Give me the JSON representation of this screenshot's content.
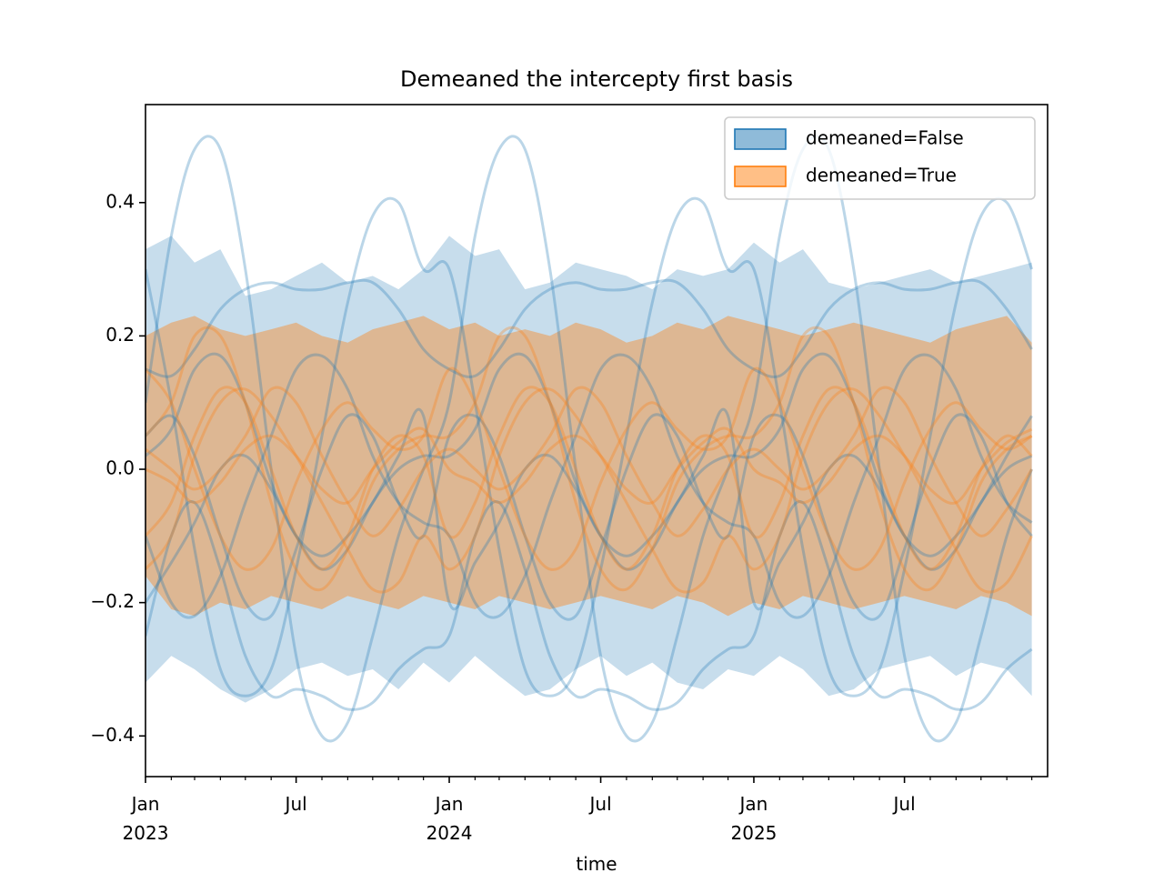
{
  "chart_data": {
    "type": "line",
    "title": "Demeaned the intercepty first basis",
    "xlabel": "time",
    "x": [
      "2023-01-01",
      "2023-02-01",
      "2023-03-01",
      "2023-04-01",
      "2023-05-01",
      "2023-06-01",
      "2023-07-01",
      "2023-08-01",
      "2023-09-01",
      "2023-10-01",
      "2023-11-01",
      "2023-12-01",
      "2024-01-01",
      "2024-02-01",
      "2024-03-01",
      "2024-04-01",
      "2024-05-01",
      "2024-06-01",
      "2024-07-01",
      "2024-08-01",
      "2024-09-01",
      "2024-10-01",
      "2024-11-01",
      "2024-12-01",
      "2025-01-01",
      "2025-02-01",
      "2025-03-01",
      "2025-04-01",
      "2025-05-01",
      "2025-06-01",
      "2025-07-01",
      "2025-08-01",
      "2025-09-01",
      "2025-10-01",
      "2025-11-01",
      "2025-12-01"
    ],
    "xlim": [
      "2023-01-01",
      "2025-12-20"
    ],
    "ylim": [
      -0.461,
      0.547
    ],
    "yticks": [
      {
        "value": -0.4,
        "label": "−0.4"
      },
      {
        "value": -0.2,
        "label": "−0.2"
      },
      {
        "value": 0,
        "label": "0.0"
      },
      0.2,
      0.4
    ],
    "xticks": [
      {
        "value": "2023-01-01",
        "label": "Jan\n2023"
      },
      {
        "value": "2023-07-01",
        "label": "Jul"
      },
      {
        "value": "2024-01-01",
        "label": "Jan\n2024"
      },
      {
        "value": "2024-07-01",
        "label": "Jul"
      },
      {
        "value": "2025-01-01",
        "label": "Jan\n2025"
      },
      {
        "value": "2025-07-01",
        "label": "Jul"
      }
    ],
    "xminorticks": [
      "2023-02-01",
      "2023-03-01",
      "2023-04-01",
      "2023-05-01",
      "2023-06-01",
      "2023-08-01",
      "2023-09-01",
      "2023-10-01",
      "2023-11-01",
      "2023-12-01",
      "2024-02-01",
      "2024-03-01",
      "2024-04-01",
      "2024-05-01",
      "2024-06-01",
      "2024-08-01",
      "2024-09-01",
      "2024-10-01",
      "2024-11-01",
      "2024-12-01",
      "2025-02-01",
      "2025-03-01",
      "2025-04-01",
      "2025-05-01",
      "2025-06-01",
      "2025-08-01",
      "2025-09-01",
      "2025-10-01",
      "2025-11-01",
      "2025-12-01"
    ],
    "legend": "upper right",
    "bands": [
      {
        "name": "demeaned=False",
        "color": "#1f77b4",
        "upper": [
          0.33,
          0.35,
          0.31,
          0.33,
          0.26,
          0.27,
          0.29,
          0.31,
          0.28,
          0.29,
          0.27,
          0.3,
          0.35,
          0.32,
          0.33,
          0.27,
          0.28,
          0.31,
          0.3,
          0.29,
          0.27,
          0.3,
          0.29,
          0.3,
          0.34,
          0.31,
          0.33,
          0.28,
          0.27,
          0.28,
          0.29,
          0.3,
          0.28,
          0.29,
          0.3,
          0.31
        ],
        "lower": [
          -0.32,
          -0.28,
          -0.3,
          -0.33,
          -0.35,
          -0.33,
          -0.3,
          -0.29,
          -0.31,
          -0.3,
          -0.33,
          -0.29,
          -0.32,
          -0.28,
          -0.31,
          -0.34,
          -0.33,
          -0.3,
          -0.28,
          -0.31,
          -0.29,
          -0.32,
          -0.33,
          -0.3,
          -0.31,
          -0.28,
          -0.3,
          -0.34,
          -0.33,
          -0.3,
          -0.29,
          -0.28,
          -0.31,
          -0.29,
          -0.3,
          -0.34
        ]
      },
      {
        "name": "demeaned=True",
        "color": "#ff7f0e",
        "upper": [
          0.2,
          0.22,
          0.23,
          0.21,
          0.2,
          0.21,
          0.22,
          0.2,
          0.19,
          0.21,
          0.22,
          0.23,
          0.21,
          0.22,
          0.2,
          0.21,
          0.2,
          0.22,
          0.21,
          0.19,
          0.2,
          0.22,
          0.21,
          0.23,
          0.22,
          0.21,
          0.2,
          0.21,
          0.22,
          0.21,
          0.2,
          0.19,
          0.21,
          0.22,
          0.23,
          0.19
        ],
        "lower": [
          -0.16,
          -0.21,
          -0.22,
          -0.2,
          -0.21,
          -0.19,
          -0.2,
          -0.21,
          -0.19,
          -0.2,
          -0.21,
          -0.19,
          -0.2,
          -0.21,
          -0.19,
          -0.2,
          -0.21,
          -0.2,
          -0.19,
          -0.2,
          -0.21,
          -0.19,
          -0.2,
          -0.22,
          -0.2,
          -0.21,
          -0.19,
          -0.2,
          -0.21,
          -0.2,
          -0.19,
          -0.2,
          -0.21,
          -0.19,
          -0.2,
          -0.22
        ]
      }
    ],
    "series": [
      {
        "color": "#1f77b4",
        "values": [
          0.1,
          0.35,
          0.48,
          0.48,
          0.3,
          0.0,
          -0.28,
          -0.4,
          -0.38,
          -0.25,
          -0.1,
          0.0,
          0.1,
          0.35,
          0.48,
          0.48,
          0.3,
          0.0,
          -0.28,
          -0.4,
          -0.38,
          -0.25,
          -0.1,
          0.0,
          0.1,
          0.35,
          0.48,
          0.48,
          0.3,
          0.0,
          -0.28,
          -0.4,
          -0.38,
          -0.25,
          -0.1,
          0.0
        ]
      },
      {
        "color": "#1f77b4",
        "values": [
          0.3,
          0.1,
          -0.12,
          -0.3,
          -0.34,
          -0.3,
          -0.15,
          0.05,
          0.25,
          0.38,
          0.4,
          0.3,
          0.3,
          0.1,
          -0.12,
          -0.3,
          -0.34,
          -0.3,
          -0.15,
          0.05,
          0.25,
          0.38,
          0.4,
          0.3,
          0.3,
          0.1,
          -0.12,
          -0.3,
          -0.34,
          -0.3,
          -0.15,
          0.05,
          0.25,
          0.38,
          0.4,
          0.3
        ]
      },
      {
        "color": "#1f77b4",
        "values": [
          0.15,
          0.14,
          0.18,
          0.24,
          0.27,
          0.28,
          0.27,
          0.27,
          0.28,
          0.28,
          0.24,
          0.18,
          0.15,
          0.14,
          0.18,
          0.24,
          0.27,
          0.28,
          0.27,
          0.27,
          0.28,
          0.28,
          0.24,
          0.18,
          0.15,
          0.14,
          0.18,
          0.24,
          0.27,
          0.28,
          0.27,
          0.27,
          0.28,
          0.28,
          0.24,
          0.18
        ]
      },
      {
        "color": "#1f77b4",
        "values": [
          -0.25,
          -0.1,
          -0.05,
          -0.15,
          -0.28,
          -0.34,
          -0.33,
          -0.34,
          -0.36,
          -0.35,
          -0.3,
          -0.27,
          -0.25,
          -0.1,
          -0.05,
          -0.15,
          -0.28,
          -0.34,
          -0.33,
          -0.34,
          -0.36,
          -0.35,
          -0.3,
          -0.27,
          -0.25,
          -0.1,
          -0.05,
          -0.15,
          -0.28,
          -0.34,
          -0.33,
          -0.34,
          -0.36,
          -0.35,
          -0.3,
          -0.27
        ]
      },
      {
        "color": "#1f77b4",
        "values": [
          0.05,
          0.08,
          0.02,
          -0.1,
          -0.2,
          -0.22,
          -0.12,
          0.0,
          0.08,
          0.05,
          -0.05,
          -0.1,
          0.05,
          0.08,
          0.02,
          -0.1,
          -0.2,
          -0.22,
          -0.12,
          0.0,
          0.08,
          0.05,
          -0.05,
          -0.1,
          0.05,
          0.08,
          0.02,
          -0.1,
          -0.2,
          -0.22,
          -0.12,
          0.0,
          0.08,
          0.05,
          -0.05,
          -0.1
        ]
      },
      {
        "color": "#1f77b4",
        "values": [
          -0.1,
          -0.2,
          -0.22,
          -0.16,
          -0.05,
          0.05,
          0.15,
          0.17,
          0.12,
          0.02,
          -0.05,
          -0.08,
          -0.1,
          -0.2,
          -0.22,
          -0.16,
          -0.05,
          0.05,
          0.15,
          0.17,
          0.12,
          0.02,
          -0.05,
          -0.08,
          -0.1,
          -0.2,
          -0.22,
          -0.16,
          -0.05,
          0.05,
          0.15,
          0.17,
          0.12,
          0.02,
          -0.05,
          -0.08
        ]
      },
      {
        "color": "#1f77b4",
        "values": [
          0.02,
          0.06,
          0.15,
          0.17,
          0.1,
          -0.02,
          -0.1,
          -0.15,
          -0.12,
          -0.05,
          0.0,
          0.02,
          0.02,
          0.06,
          0.15,
          0.17,
          0.1,
          -0.02,
          -0.1,
          -0.15,
          -0.12,
          -0.05,
          0.0,
          0.02,
          0.02,
          0.06,
          0.15,
          0.17,
          0.1,
          -0.02,
          -0.1,
          -0.15,
          -0.12,
          -0.05,
          0.0,
          0.02
        ]
      },
      {
        "color": "#1f77b4",
        "values": [
          -0.2,
          -0.14,
          -0.08,
          0.0,
          0.02,
          -0.03,
          -0.1,
          -0.13,
          -0.1,
          -0.05,
          0.02,
          0.08,
          -0.2,
          -0.14,
          -0.08,
          0.0,
          0.02,
          -0.03,
          -0.1,
          -0.13,
          -0.1,
          -0.05,
          0.02,
          0.08,
          -0.2,
          -0.14,
          -0.08,
          0.0,
          0.02,
          -0.03,
          -0.1,
          -0.13,
          -0.1,
          -0.05,
          0.02,
          0.08
        ]
      },
      {
        "color": "#ff7f0e",
        "values": [
          -0.1,
          -0.05,
          0.05,
          0.12,
          0.1,
          0.0,
          -0.1,
          -0.15,
          -0.1,
          0.0,
          0.05,
          0.02,
          -0.1,
          -0.05,
          0.05,
          0.12,
          0.1,
          0.0,
          -0.1,
          -0.15,
          -0.1,
          0.0,
          0.05,
          0.02,
          -0.1,
          -0.05,
          0.05,
          0.12,
          0.1,
          0.0,
          -0.1,
          -0.15,
          -0.1,
          0.0,
          0.05,
          0.02
        ]
      },
      {
        "color": "#ff7f0e",
        "values": [
          0.15,
          0.1,
          0.0,
          -0.1,
          -0.15,
          -0.12,
          -0.02,
          0.06,
          0.1,
          0.06,
          0.03,
          0.05,
          0.15,
          0.1,
          0.0,
          -0.1,
          -0.15,
          -0.12,
          -0.02,
          0.06,
          0.1,
          0.06,
          0.03,
          0.05,
          0.15,
          0.1,
          0.0,
          -0.1,
          -0.15,
          -0.12,
          -0.02,
          0.06,
          0.1,
          0.06,
          0.03,
          0.05
        ]
      },
      {
        "color": "#ff7f0e",
        "values": [
          0.05,
          0.1,
          0.2,
          0.2,
          0.1,
          -0.05,
          -0.15,
          -0.18,
          -0.12,
          -0.02,
          0.03,
          0.05,
          0.05,
          0.1,
          0.2,
          0.2,
          0.1,
          -0.05,
          -0.15,
          -0.18,
          -0.12,
          -0.02,
          0.03,
          0.05,
          0.05,
          0.1,
          0.2,
          0.2,
          0.1,
          -0.05,
          -0.15,
          -0.18,
          -0.12,
          -0.02,
          0.03,
          0.05
        ]
      },
      {
        "color": "#ff7f0e",
        "values": [
          0.0,
          -0.02,
          -0.05,
          -0.02,
          0.03,
          0.05,
          0.02,
          -0.03,
          -0.05,
          0.0,
          0.04,
          0.06,
          0.0,
          -0.02,
          -0.05,
          -0.02,
          0.03,
          0.05,
          0.02,
          -0.03,
          -0.05,
          0.0,
          0.04,
          0.06,
          0.0,
          -0.02,
          -0.05,
          -0.02,
          0.03,
          0.05,
          0.02,
          -0.03,
          -0.05,
          0.0,
          0.04,
          0.06
        ]
      },
      {
        "color": "#ff7f0e",
        "values": [
          -0.15,
          -0.1,
          0.02,
          0.1,
          0.12,
          0.08,
          0.02,
          -0.05,
          -0.12,
          -0.18,
          -0.17,
          -0.1,
          -0.15,
          -0.1,
          0.02,
          0.1,
          0.12,
          0.08,
          0.02,
          -0.05,
          -0.12,
          -0.18,
          -0.17,
          -0.1,
          -0.15,
          -0.1,
          0.02,
          0.1,
          0.12,
          0.08,
          0.02,
          -0.05,
          -0.12,
          -0.18,
          -0.17,
          -0.1
        ]
      },
      {
        "color": "#ff7f0e",
        "values": [
          0.03,
          0.0,
          -0.03,
          0.0,
          0.05,
          0.12,
          0.1,
          0.02,
          -0.05,
          -0.1,
          -0.06,
          0.0,
          0.03,
          0.0,
          -0.03,
          0.0,
          0.05,
          0.12,
          0.1,
          0.02,
          -0.05,
          -0.1,
          -0.06,
          0.0,
          0.03,
          0.0,
          -0.03,
          0.0,
          0.05,
          0.12,
          0.1,
          0.02,
          -0.05,
          -0.1,
          -0.06,
          0.0
        ]
      }
    ]
  }
}
